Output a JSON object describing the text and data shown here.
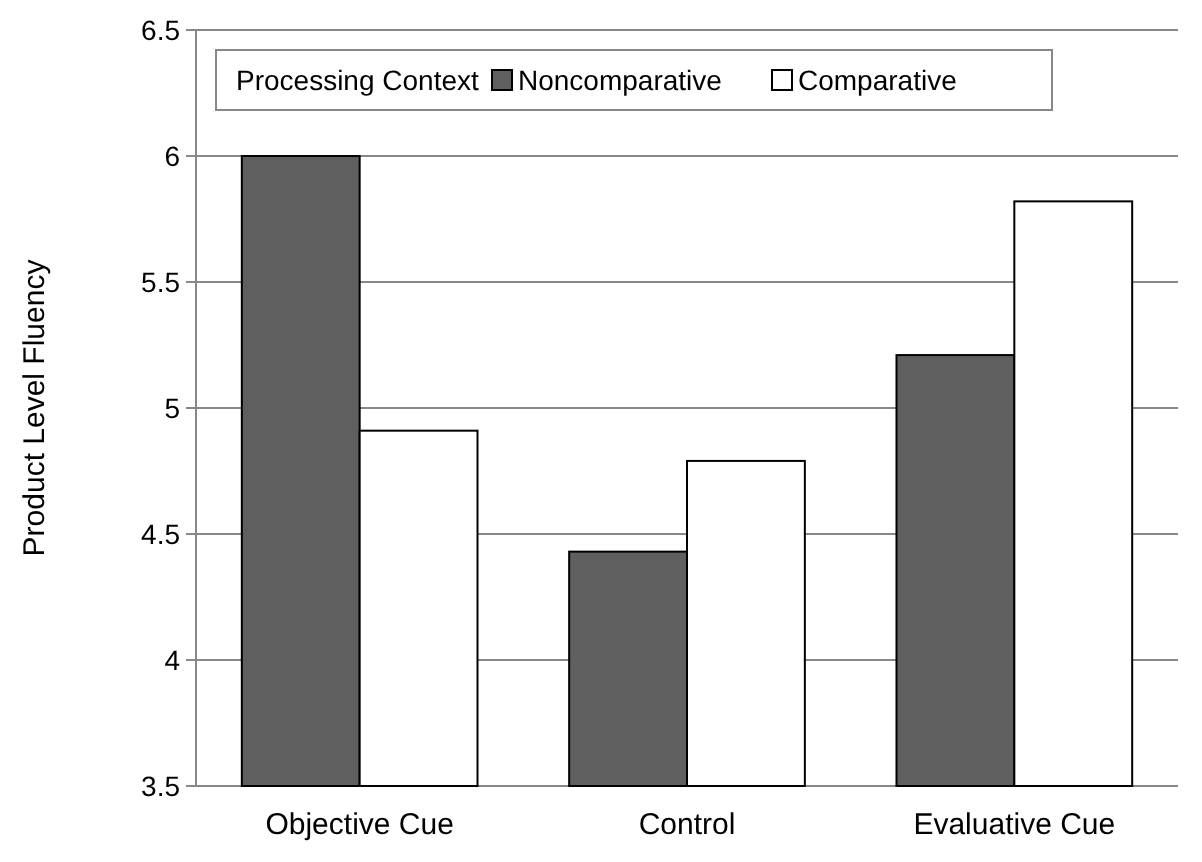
{
  "chart_data": {
    "type": "bar",
    "ylabel": "Product Level Fluency",
    "legend_title": "Processing Context",
    "categories": [
      "Objective Cue",
      "Control",
      "Evaluative Cue"
    ],
    "series": [
      {
        "name": "Noncomparative",
        "color": "#5f5f5f",
        "values": [
          6.0,
          4.43,
          5.21
        ]
      },
      {
        "name": "Comparative",
        "color": "#ffffff",
        "values": [
          4.91,
          4.79,
          5.82
        ]
      }
    ],
    "ylim": [
      3.5,
      6.5
    ],
    "yticks": [
      3.5,
      4,
      4.5,
      5,
      5.5,
      6,
      6.5
    ],
    "grid": "y",
    "legend": "top"
  }
}
